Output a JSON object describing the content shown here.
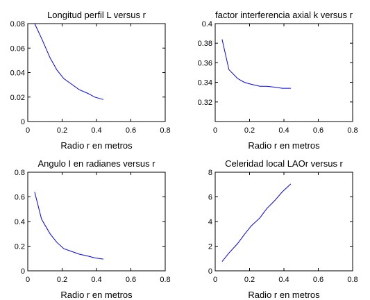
{
  "chart_data": [
    {
      "type": "line",
      "title": "Longitud perfil L versus r",
      "xlabel": "Radio r en metros",
      "ylabel": "",
      "xlim": [
        0,
        0.8
      ],
      "ylim": [
        0,
        0.08
      ],
      "xticks": [
        "0",
        "0.2",
        "0.4",
        "0.6",
        "0.8"
      ],
      "yticks": [
        "0",
        "0.02",
        "0.04",
        "0.06",
        "0.08"
      ],
      "grid": false,
      "color": "#0000ff",
      "x": [
        0.04,
        0.08,
        0.13,
        0.17,
        0.21,
        0.26,
        0.3,
        0.35,
        0.39,
        0.44
      ],
      "y": [
        0.08,
        0.068,
        0.052,
        0.042,
        0.035,
        0.03,
        0.026,
        0.023,
        0.02,
        0.018
      ]
    },
    {
      "type": "line",
      "title": "factor interferencia  axial k versus r",
      "xlabel": "Radio r en metros",
      "ylabel": "",
      "xlim": [
        0,
        0.8
      ],
      "ylim": [
        0.3,
        0.4
      ],
      "xticks": [
        "0",
        "0.2",
        "0.4",
        "0.6",
        "0.8"
      ],
      "yticks": [
        "0.32",
        "0.34",
        "0.36",
        "0.38",
        "0.4"
      ],
      "grid": false,
      "color": "#0000ff",
      "x": [
        0.04,
        0.08,
        0.13,
        0.17,
        0.21,
        0.26,
        0.3,
        0.35,
        0.39,
        0.44
      ],
      "y": [
        0.384,
        0.353,
        0.344,
        0.34,
        0.338,
        0.336,
        0.336,
        0.335,
        0.334,
        0.334
      ]
    },
    {
      "type": "line",
      "title": "Angulo I en radianes  versus r",
      "xlabel": "Radio r en metros",
      "ylabel": "",
      "xlim": [
        0,
        0.8
      ],
      "ylim": [
        0,
        0.8
      ],
      "xticks": [
        "0",
        "0.2",
        "0.4",
        "0.6",
        "0.8"
      ],
      "yticks": [
        "0",
        "0.2",
        "0.4",
        "0.6",
        "0.8"
      ],
      "grid": false,
      "color": "#0000ff",
      "x": [
        0.04,
        0.08,
        0.13,
        0.17,
        0.21,
        0.26,
        0.3,
        0.35,
        0.39,
        0.44
      ],
      "y": [
        0.64,
        0.42,
        0.3,
        0.23,
        0.18,
        0.155,
        0.135,
        0.12,
        0.105,
        0.095
      ]
    },
    {
      "type": "line",
      "title": "Celeridad local LAOr versus r",
      "xlabel": "Radio r en metros",
      "ylabel": "",
      "xlim": [
        0,
        0.8
      ],
      "ylim": [
        0,
        8
      ],
      "xticks": [
        "0",
        "0.2",
        "0.4",
        "0.6",
        "0.8"
      ],
      "yticks": [
        "0",
        "2",
        "4",
        "6",
        "8"
      ],
      "grid": false,
      "color": "#0000ff",
      "x": [
        0.04,
        0.08,
        0.13,
        0.17,
        0.21,
        0.26,
        0.3,
        0.35,
        0.39,
        0.44
      ],
      "y": [
        0.75,
        1.45,
        2.2,
        2.95,
        3.65,
        4.3,
        5.05,
        5.75,
        6.4,
        7.05
      ]
    }
  ]
}
